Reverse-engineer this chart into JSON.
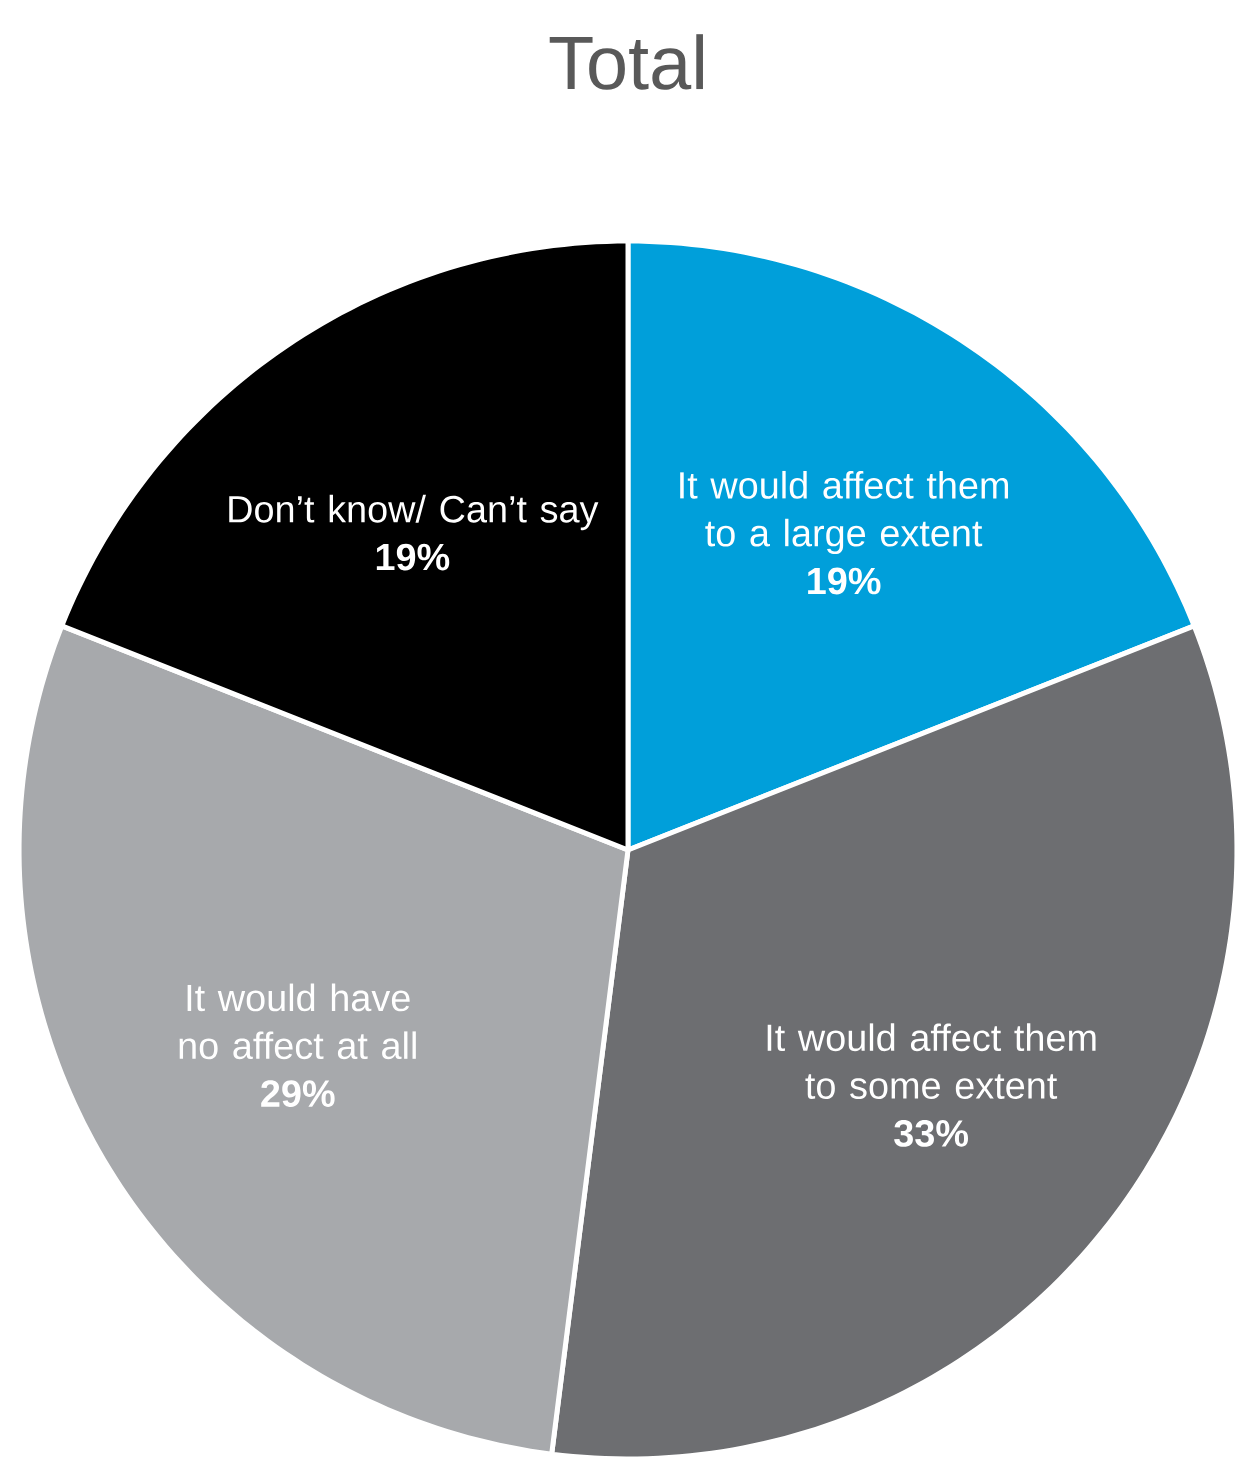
{
  "chart_data": {
    "type": "pie",
    "title": "Total",
    "categories": [
      "It would affect them to a large extent",
      "It would affect them to some extent",
      "It would have no affect at all",
      "Don’t know/ Can’t say"
    ],
    "values": [
      19,
      33,
      29,
      19
    ],
    "value_labels": [
      "19%",
      "33%",
      "29%",
      "19%"
    ],
    "colors": [
      "#009fda",
      "#6d6e71",
      "#a7a9ac",
      "#000000"
    ]
  }
}
